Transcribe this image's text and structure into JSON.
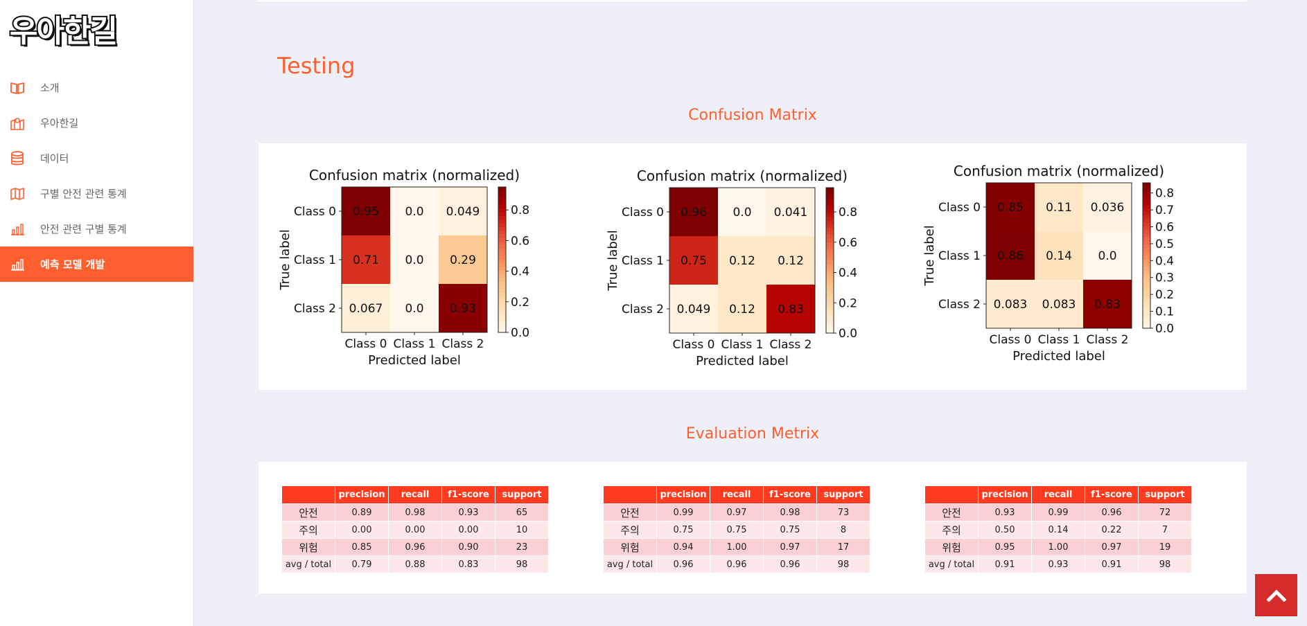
{
  "app": {
    "logo": "우아한길"
  },
  "sidebar": {
    "items": [
      {
        "label": "소개",
        "icon": "book-icon"
      },
      {
        "label": "우아한길",
        "icon": "map-pin-icon"
      },
      {
        "label": "데이터",
        "icon": "database-icon"
      },
      {
        "label": "구별 안전 관련 통계",
        "icon": "map-icon"
      },
      {
        "label": "안전 관련 구별 통계",
        "icon": "bar-chart-icon"
      },
      {
        "label": "예측 모델 개발",
        "icon": "bar-chart-icon",
        "active": true
      }
    ]
  },
  "main": {
    "page_title": "Testing",
    "confusion_title": "Confusion Matrix",
    "evaluation_title": "Evaluation Metrix"
  },
  "colors": {
    "accent": "#ff5f2e",
    "table_header": "#ff3b1f",
    "scroll_button": "#d72c2c"
  },
  "chart_data": [
    {
      "type": "heatmap",
      "title": "Confusion matrix (normalized)",
      "xlabel": "Predicted label",
      "ylabel": "True label",
      "x_categories": [
        "Class 0",
        "Class 1",
        "Class 2"
      ],
      "y_categories": [
        "Class 0",
        "Class 1",
        "Class 2"
      ],
      "values": [
        [
          0.95,
          0.0,
          0.049
        ],
        [
          0.71,
          0.0,
          0.29
        ],
        [
          0.067,
          0.0,
          0.93
        ]
      ],
      "labels": [
        [
          "0.95",
          "0.0",
          "0.049"
        ],
        [
          "0.71",
          "0.0",
          "0.29"
        ],
        [
          "0.067",
          "0.0",
          "0.93"
        ]
      ],
      "colorbar_max": 0.95,
      "colorbar_ticks": [
        "0.0",
        "0.2",
        "0.4",
        "0.6",
        "0.8"
      ],
      "colormap": "OrRd"
    },
    {
      "type": "heatmap",
      "title": "Confusion matrix (normalized)",
      "xlabel": "Predicted label",
      "ylabel": "True label",
      "x_categories": [
        "Class 0",
        "Class 1",
        "Class 2"
      ],
      "y_categories": [
        "Class 0",
        "Class 1",
        "Class 2"
      ],
      "values": [
        [
          0.96,
          0.0,
          0.041
        ],
        [
          0.75,
          0.12,
          0.12
        ],
        [
          0.049,
          0.12,
          0.83
        ]
      ],
      "labels": [
        [
          "0.96",
          "0.0",
          "0.041"
        ],
        [
          "0.75",
          "0.12",
          "0.12"
        ],
        [
          "0.049",
          "0.12",
          "0.83"
        ]
      ],
      "colorbar_max": 0.96,
      "colorbar_ticks": [
        "0.0",
        "0.2",
        "0.4",
        "0.6",
        "0.8"
      ],
      "colormap": "OrRd"
    },
    {
      "type": "heatmap",
      "title": "Confusion matrix (normalized)",
      "xlabel": "Predicted label",
      "ylabel": "True label",
      "x_categories": [
        "Class 0",
        "Class 1",
        "Class 2"
      ],
      "y_categories": [
        "Class 0",
        "Class 1",
        "Class 2"
      ],
      "values": [
        [
          0.85,
          0.11,
          0.036
        ],
        [
          0.86,
          0.14,
          0.0
        ],
        [
          0.083,
          0.083,
          0.83
        ]
      ],
      "labels": [
        [
          "0.85",
          "0.11",
          "0.036"
        ],
        [
          "0.86",
          "0.14",
          "0.0"
        ],
        [
          "0.083",
          "0.083",
          "0.83"
        ]
      ],
      "colorbar_max": 0.86,
      "colorbar_ticks": [
        "0.0",
        "0.1",
        "0.2",
        "0.3",
        "0.4",
        "0.5",
        "0.6",
        "0.7",
        "0.8"
      ],
      "colormap": "OrRd"
    }
  ],
  "tables": [
    {
      "columns": [
        "",
        "precision",
        "recall",
        "f1-score",
        "support"
      ],
      "rows": [
        [
          "안전",
          "0.89",
          "0.98",
          "0.93",
          "65"
        ],
        [
          "주의",
          "0.00",
          "0.00",
          "0.00",
          "10"
        ],
        [
          "위험",
          "0.85",
          "0.96",
          "0.90",
          "23"
        ],
        [
          "avg / total",
          "0.79",
          "0.88",
          "0.83",
          "98"
        ]
      ]
    },
    {
      "columns": [
        "",
        "precision",
        "recall",
        "f1-score",
        "support"
      ],
      "rows": [
        [
          "안전",
          "0.99",
          "0.97",
          "0.98",
          "73"
        ],
        [
          "주의",
          "0.75",
          "0.75",
          "0.75",
          "8"
        ],
        [
          "위험",
          "0.94",
          "1.00",
          "0.97",
          "17"
        ],
        [
          "avg / total",
          "0.96",
          "0.96",
          "0.96",
          "98"
        ]
      ]
    },
    {
      "columns": [
        "",
        "precision",
        "recall",
        "f1-score",
        "support"
      ],
      "rows": [
        [
          "안전",
          "0.93",
          "0.99",
          "0.96",
          "72"
        ],
        [
          "주의",
          "0.50",
          "0.14",
          "0.22",
          "7"
        ],
        [
          "위험",
          "0.95",
          "1.00",
          "0.97",
          "19"
        ],
        [
          "avg / total",
          "0.91",
          "0.93",
          "0.91",
          "98"
        ]
      ]
    }
  ]
}
